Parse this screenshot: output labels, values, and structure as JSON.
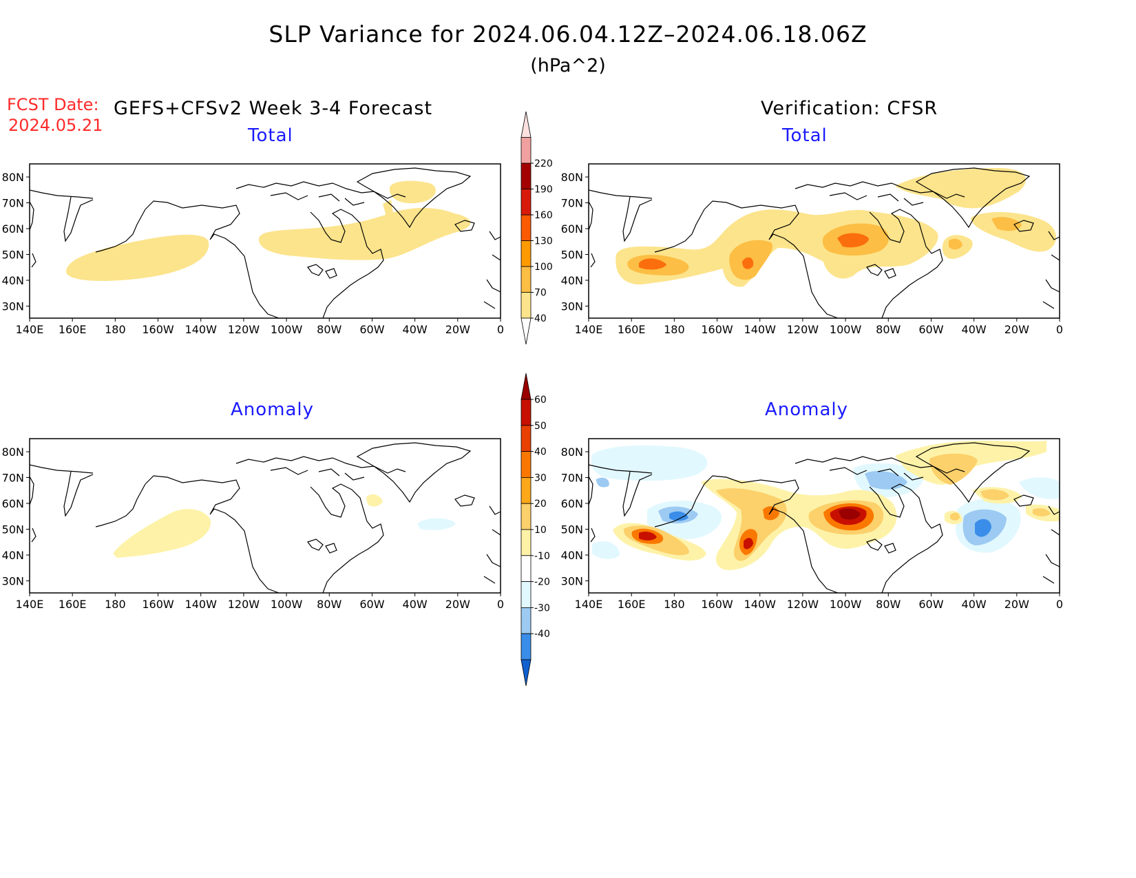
{
  "title": "SLP Variance for 2024.06.04.12Z–2024.06.18.06Z",
  "units": "(hPa^2)",
  "fcst_label": "FCST Date:",
  "fcst_date": "2024.05.21",
  "left_heading": "GEFS+CFSv2 Week 3-4 Forecast",
  "right_heading": "Verification: CFSR",
  "panel_titles": {
    "top_left": "Total",
    "top_right": "Total",
    "bottom_left": "Anomaly",
    "bottom_right": "Anomaly"
  },
  "lat_labels": [
    "80N",
    "70N",
    "60N",
    "50N",
    "40N",
    "30N"
  ],
  "lon_labels": [
    "140E",
    "160E",
    "180",
    "160W",
    "140W",
    "120W",
    "100W",
    "80W",
    "60W",
    "40W",
    "20W",
    "0"
  ],
  "colorbar_total": {
    "levels": [
      "40",
      "70",
      "100",
      "130",
      "160",
      "190",
      "220"
    ],
    "colors": [
      "#fce48c",
      "#fcbe44",
      "#fc9a00",
      "#fa5a00",
      "#d81a0a",
      "#a30000",
      "#f1a0a0",
      "#fde0e0"
    ]
  },
  "colorbar_anomaly": {
    "levels": [
      "-40",
      "-30",
      "-20",
      "-10",
      "10",
      "20",
      "30",
      "40",
      "50",
      "60"
    ],
    "colors": [
      "#1060d0",
      "#3a8de8",
      "#9ccaf2",
      "#e2f8ff",
      "#ffffff",
      "#fdf2a8",
      "#fcd06a",
      "#fca81a",
      "#fa7800",
      "#e84000",
      "#c81000",
      "#9a0000"
    ]
  }
}
